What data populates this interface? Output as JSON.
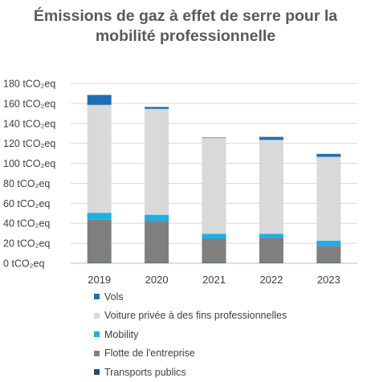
{
  "chart_data": {
    "type": "bar",
    "stacked": true,
    "title_lines": [
      "Émissions de gaz à effet de serre pour la",
      "mobilité professionnelle"
    ],
    "categories": [
      "2019",
      "2020",
      "2021",
      "2022",
      "2023"
    ],
    "ylim": [
      0,
      180
    ],
    "yticks": [
      0,
      20,
      40,
      60,
      80,
      100,
      120,
      140,
      160,
      180
    ],
    "ytick_labels": [
      "0 tCO₂eq",
      "20 tCO₂eq",
      "40 tCO₂eq",
      "60 tCO₂eq",
      "80 tCO₂eq",
      "100 tCO₂eq",
      "120 tCO₂eq",
      "140 tCO₂eq",
      "160 tCO₂eq",
      "180 tCO₂eq"
    ],
    "grid": true,
    "legend_position": "bottom",
    "stack_order": [
      "Transports publics",
      "Flotte de l'entreprise",
      "Mobility",
      "Voiture privée à des fins professionnelles",
      "Vols"
    ],
    "series": [
      {
        "name": "Vols",
        "color": "#1f6fb2",
        "values": [
          10,
          2,
          0.5,
          3,
          3
        ]
      },
      {
        "name": "Voiture privée à des fins professionnelles",
        "color": "#d9d9d9",
        "values": [
          108,
          106,
          96,
          94,
          84
        ]
      },
      {
        "name": "Mobility",
        "color": "#1ab0e8",
        "values": [
          7,
          6,
          5,
          4,
          5
        ]
      },
      {
        "name": "Flotte de l'entreprise",
        "color": "#7f7f7f",
        "values": [
          43,
          42,
          24,
          25,
          17
        ]
      },
      {
        "name": "Transports publics",
        "color": "#1f4e79",
        "values": [
          0.5,
          0.5,
          0.5,
          0.5,
          0.5
        ]
      }
    ]
  }
}
